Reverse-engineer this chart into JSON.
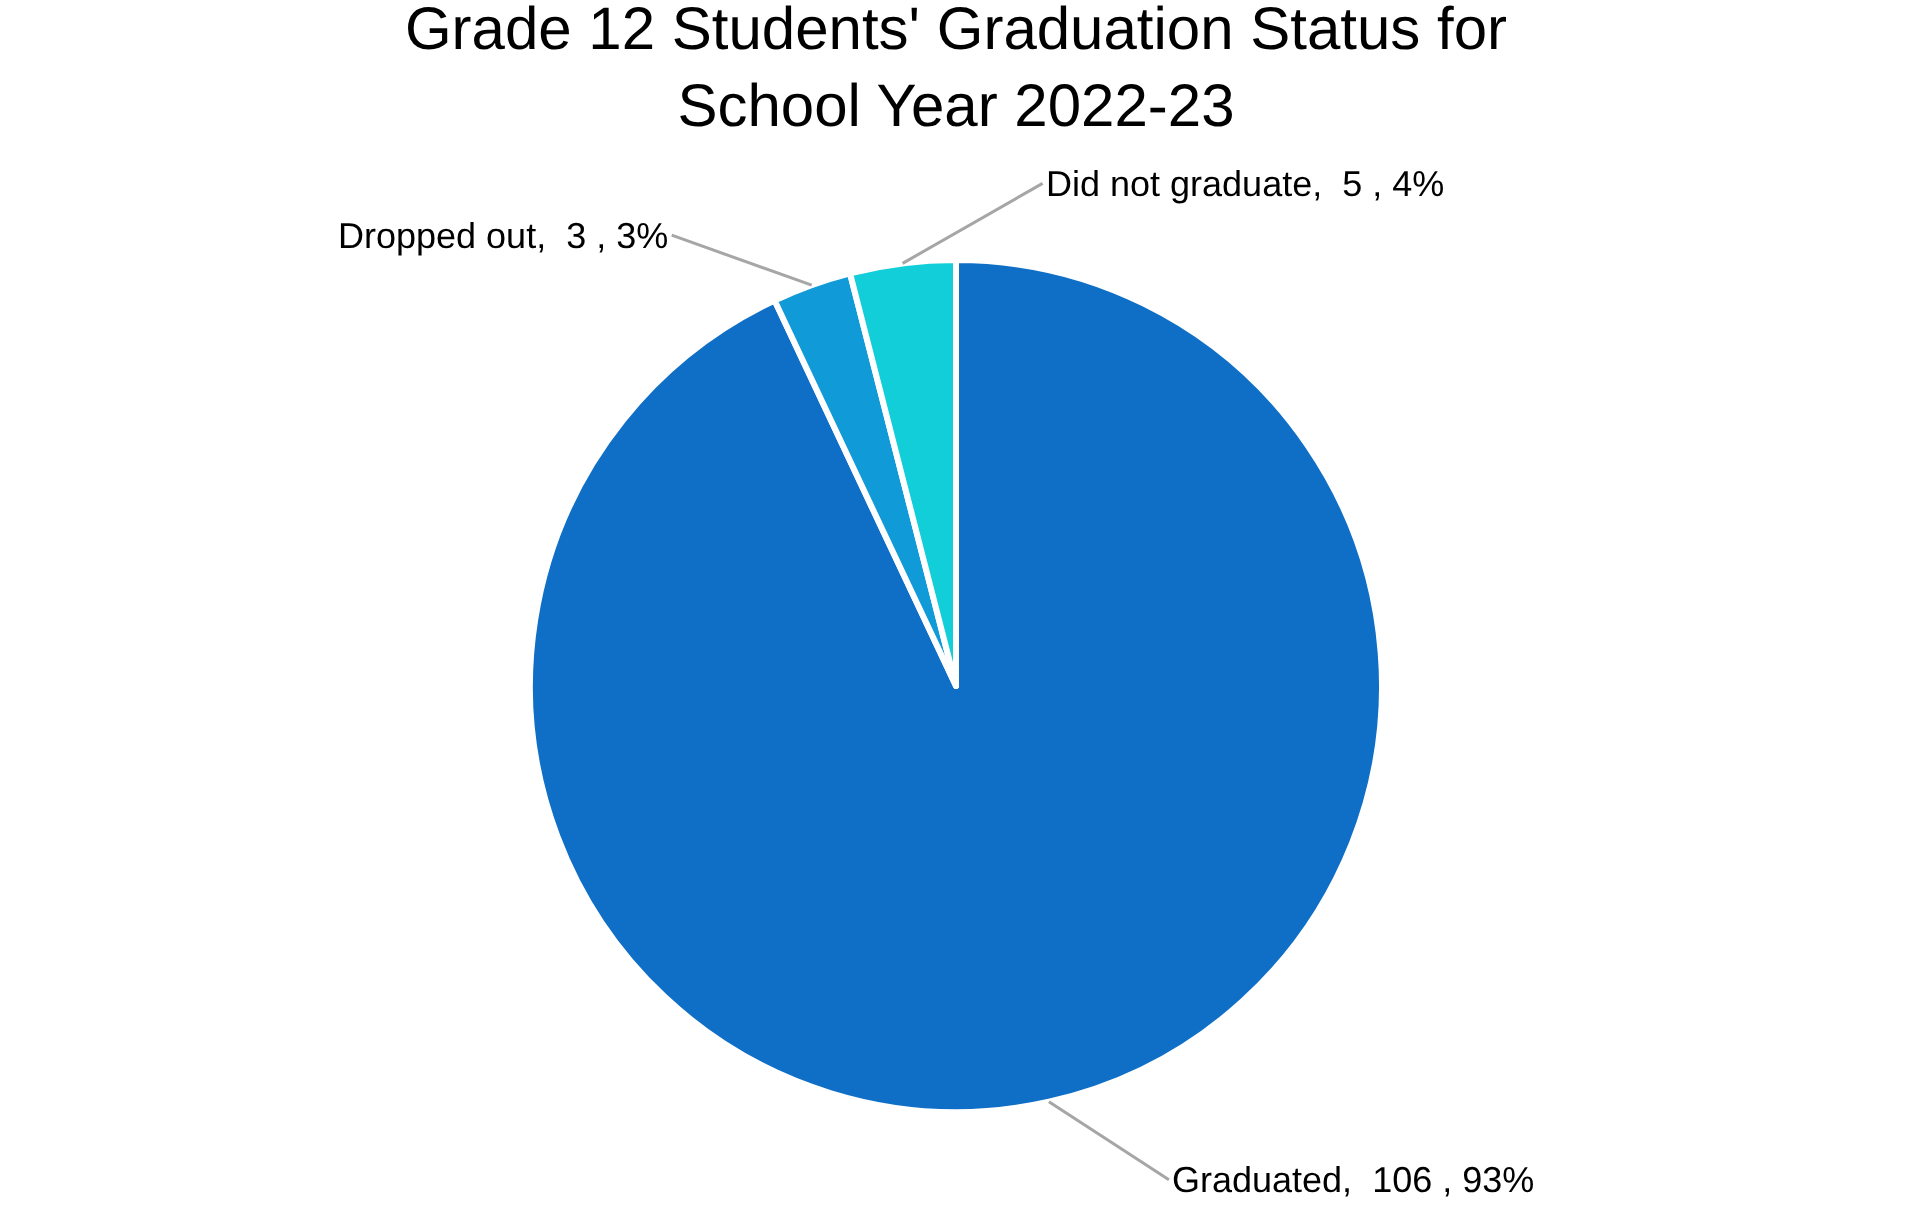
{
  "chart_data": {
    "type": "pie",
    "title": "Grade 12 Students' Graduation Status for School Year 2022-23",
    "categories": [
      "Graduated,  106 , 93%",
      "Dropped out,  3 , 3%",
      "Did not graduate,  5 , 4%"
    ],
    "values": [
      93,
      3,
      4
    ],
    "colors": [
      "#0f6fc6",
      "#109ad8",
      "#12ced9"
    ],
    "legend": false
  }
}
